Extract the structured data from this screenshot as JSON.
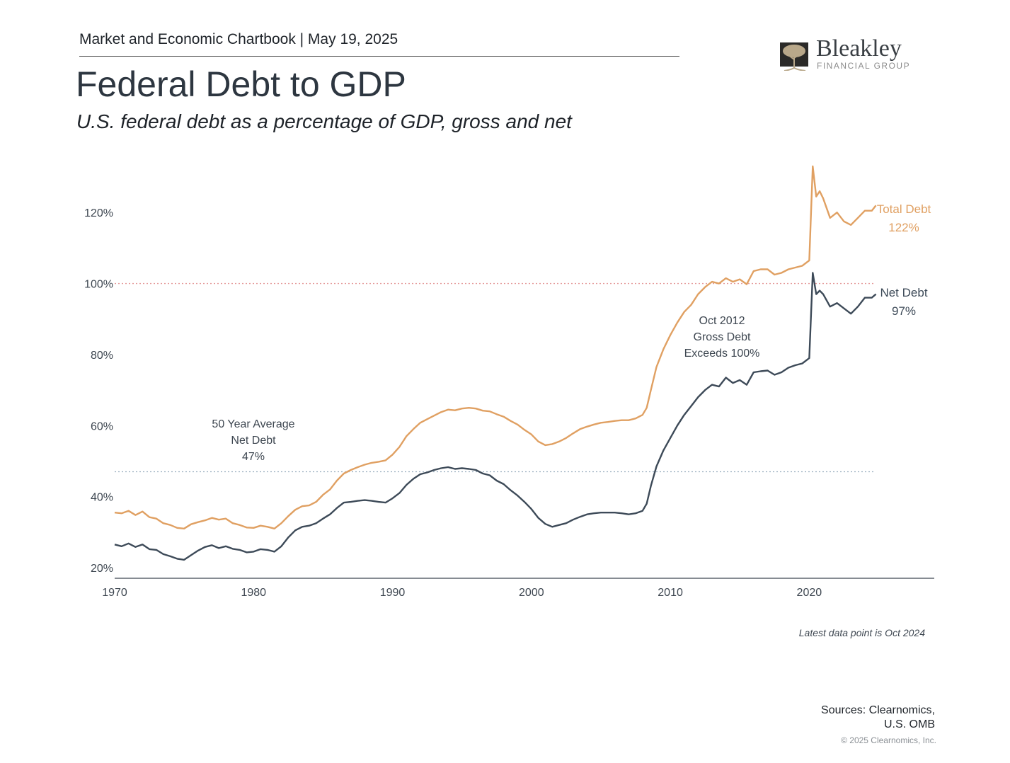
{
  "header": {
    "chartbook": "Market and Economic Chartbook | May 19, 2025",
    "title": "Federal Debt to GDP",
    "subtitle": "U.S. federal debt as a percentage of GDP, gross and net"
  },
  "logo": {
    "name": "Bleakley",
    "tagline": "FINANCIAL GROUP",
    "colors": {
      "mark": "#2b2a28",
      "tree": "#b9a88a",
      "name": "#3a3f44"
    }
  },
  "footer": {
    "note": "Latest data point is Oct 2024",
    "sources_line1": "Sources: Clearnomics,",
    "sources_line2": "U.S. OMB",
    "copyright": "© 2025 Clearnomics, Inc."
  },
  "chart_data": {
    "type": "line",
    "x_unit": "year",
    "xlim": [
      1970,
      2029
    ],
    "ylim": [
      17,
      134
    ],
    "x_ticks": [
      {
        "value": 1970,
        "label": "1970"
      },
      {
        "value": 1980,
        "label": "1980"
      },
      {
        "value": 1990,
        "label": "1990"
      },
      {
        "value": 2000,
        "label": "2000"
      },
      {
        "value": 2010,
        "label": "2010"
      },
      {
        "value": 2020,
        "label": "2020"
      }
    ],
    "y_ticks": [
      {
        "value": 20,
        "label": "20%"
      },
      {
        "value": 40,
        "label": "40%"
      },
      {
        "value": 60,
        "label": "60%"
      },
      {
        "value": 80,
        "label": "80%"
      },
      {
        "value": 100,
        "label": "100%"
      },
      {
        "value": 120,
        "label": "120%"
      }
    ],
    "grid": false,
    "reference_lines": [
      {
        "value": 100,
        "color": "#e59b9b"
      },
      {
        "value": 47,
        "color": "#9aaebf"
      }
    ],
    "series": [
      {
        "name": "Total Debt",
        "end_label": "122%",
        "color": "#e0a062",
        "points": [
          [
            1970,
            35.5
          ],
          [
            1970.5,
            35.3
          ],
          [
            1971,
            36.0
          ],
          [
            1971.5,
            34.8
          ],
          [
            1972,
            35.8
          ],
          [
            1972.5,
            34.2
          ],
          [
            1973,
            33.8
          ],
          [
            1973.5,
            32.5
          ],
          [
            1974,
            32.0
          ],
          [
            1974.5,
            31.2
          ],
          [
            1975,
            31.0
          ],
          [
            1975.5,
            32.2
          ],
          [
            1976,
            32.8
          ],
          [
            1976.5,
            33.3
          ],
          [
            1977,
            34.0
          ],
          [
            1977.5,
            33.5
          ],
          [
            1978,
            33.8
          ],
          [
            1978.5,
            32.5
          ],
          [
            1979,
            32.0
          ],
          [
            1979.5,
            31.3
          ],
          [
            1980,
            31.2
          ],
          [
            1980.5,
            31.8
          ],
          [
            1981,
            31.5
          ],
          [
            1981.5,
            31.0
          ],
          [
            1982,
            32.5
          ],
          [
            1982.5,
            34.5
          ],
          [
            1983,
            36.3
          ],
          [
            1983.5,
            37.3
          ],
          [
            1984,
            37.5
          ],
          [
            1984.5,
            38.5
          ],
          [
            1985,
            40.5
          ],
          [
            1985.5,
            42.0
          ],
          [
            1986,
            44.5
          ],
          [
            1986.5,
            46.5
          ],
          [
            1987,
            47.5
          ],
          [
            1987.5,
            48.3
          ],
          [
            1988,
            49.0
          ],
          [
            1988.5,
            49.5
          ],
          [
            1989,
            49.8
          ],
          [
            1989.5,
            50.2
          ],
          [
            1990,
            51.8
          ],
          [
            1990.5,
            54.0
          ],
          [
            1991,
            57.0
          ],
          [
            1991.5,
            59.0
          ],
          [
            1992,
            60.8
          ],
          [
            1992.5,
            61.8
          ],
          [
            1993,
            62.8
          ],
          [
            1993.5,
            63.8
          ],
          [
            1994,
            64.5
          ],
          [
            1994.5,
            64.3
          ],
          [
            1995,
            64.8
          ],
          [
            1995.5,
            65.0
          ],
          [
            1996,
            64.8
          ],
          [
            1996.5,
            64.2
          ],
          [
            1997,
            64.0
          ],
          [
            1997.5,
            63.2
          ],
          [
            1998,
            62.5
          ],
          [
            1998.5,
            61.3
          ],
          [
            1999,
            60.3
          ],
          [
            1999.5,
            58.8
          ],
          [
            2000,
            57.5
          ],
          [
            2000.5,
            55.5
          ],
          [
            2001,
            54.5
          ],
          [
            2001.5,
            54.8
          ],
          [
            2002,
            55.5
          ],
          [
            2002.5,
            56.5
          ],
          [
            2003,
            57.8
          ],
          [
            2003.5,
            59.0
          ],
          [
            2004,
            59.7
          ],
          [
            2004.5,
            60.3
          ],
          [
            2005,
            60.8
          ],
          [
            2005.5,
            61.0
          ],
          [
            2006,
            61.3
          ],
          [
            2006.5,
            61.5
          ],
          [
            2007,
            61.5
          ],
          [
            2007.5,
            62.0
          ],
          [
            2008,
            63.0
          ],
          [
            2008.3,
            65.0
          ],
          [
            2008.6,
            70.0
          ],
          [
            2009,
            76.5
          ],
          [
            2009.5,
            81.5
          ],
          [
            2010,
            85.5
          ],
          [
            2010.5,
            89.0
          ],
          [
            2011,
            92.0
          ],
          [
            2011.5,
            94.0
          ],
          [
            2012,
            97.0
          ],
          [
            2012.5,
            99.0
          ],
          [
            2013,
            100.5
          ],
          [
            2013.5,
            100.0
          ],
          [
            2014,
            101.5
          ],
          [
            2014.5,
            100.5
          ],
          [
            2015,
            101.2
          ],
          [
            2015.5,
            99.8
          ],
          [
            2016,
            103.5
          ],
          [
            2016.5,
            104.0
          ],
          [
            2017,
            104.0
          ],
          [
            2017.5,
            102.5
          ],
          [
            2018,
            103.0
          ],
          [
            2018.5,
            104.0
          ],
          [
            2019,
            104.5
          ],
          [
            2019.5,
            105.0
          ],
          [
            2020,
            106.5
          ],
          [
            2020.25,
            133.0
          ],
          [
            2020.5,
            124.5
          ],
          [
            2020.75,
            126.0
          ],
          [
            2021,
            124.0
          ],
          [
            2021.5,
            118.5
          ],
          [
            2022,
            120.0
          ],
          [
            2022.5,
            117.5
          ],
          [
            2023,
            116.5
          ],
          [
            2023.5,
            118.5
          ],
          [
            2024,
            120.5
          ],
          [
            2024.5,
            120.5
          ],
          [
            2024.8,
            122.0
          ]
        ]
      },
      {
        "name": "Net Debt",
        "end_label": "97%",
        "color": "#3d4a58",
        "points": [
          [
            1970,
            26.5
          ],
          [
            1970.5,
            26.0
          ],
          [
            1971,
            26.8
          ],
          [
            1971.5,
            25.8
          ],
          [
            1972,
            26.5
          ],
          [
            1972.5,
            25.2
          ],
          [
            1973,
            25.0
          ],
          [
            1973.5,
            23.8
          ],
          [
            1974,
            23.2
          ],
          [
            1974.5,
            22.5
          ],
          [
            1975,
            22.2
          ],
          [
            1975.5,
            23.5
          ],
          [
            1976,
            24.8
          ],
          [
            1976.5,
            25.8
          ],
          [
            1977,
            26.3
          ],
          [
            1977.5,
            25.5
          ],
          [
            1978,
            26.0
          ],
          [
            1978.5,
            25.3
          ],
          [
            1979,
            25.0
          ],
          [
            1979.5,
            24.3
          ],
          [
            1980,
            24.5
          ],
          [
            1980.5,
            25.2
          ],
          [
            1981,
            25.0
          ],
          [
            1981.5,
            24.5
          ],
          [
            1982,
            26.0
          ],
          [
            1982.5,
            28.5
          ],
          [
            1983,
            30.5
          ],
          [
            1983.5,
            31.5
          ],
          [
            1984,
            31.8
          ],
          [
            1984.5,
            32.5
          ],
          [
            1985,
            33.8
          ],
          [
            1985.5,
            35.0
          ],
          [
            1986,
            36.8
          ],
          [
            1986.5,
            38.3
          ],
          [
            1987,
            38.5
          ],
          [
            1987.5,
            38.8
          ],
          [
            1988,
            39.0
          ],
          [
            1988.5,
            38.8
          ],
          [
            1989,
            38.5
          ],
          [
            1989.5,
            38.3
          ],
          [
            1990,
            39.5
          ],
          [
            1990.5,
            41.0
          ],
          [
            1991,
            43.3
          ],
          [
            1991.5,
            45.0
          ],
          [
            1992,
            46.3
          ],
          [
            1992.5,
            46.8
          ],
          [
            1993,
            47.5
          ],
          [
            1993.5,
            48.0
          ],
          [
            1994,
            48.3
          ],
          [
            1994.5,
            47.8
          ],
          [
            1995,
            48.0
          ],
          [
            1995.5,
            47.8
          ],
          [
            1996,
            47.5
          ],
          [
            1996.5,
            46.5
          ],
          [
            1997,
            46.0
          ],
          [
            1997.5,
            44.5
          ],
          [
            1998,
            43.5
          ],
          [
            1998.5,
            41.8
          ],
          [
            1999,
            40.3
          ],
          [
            1999.5,
            38.5
          ],
          [
            2000,
            36.5
          ],
          [
            2000.5,
            34.0
          ],
          [
            2001,
            32.3
          ],
          [
            2001.5,
            31.5
          ],
          [
            2002,
            32.0
          ],
          [
            2002.5,
            32.5
          ],
          [
            2003,
            33.5
          ],
          [
            2003.5,
            34.3
          ],
          [
            2004,
            35.0
          ],
          [
            2004.5,
            35.3
          ],
          [
            2005,
            35.5
          ],
          [
            2005.5,
            35.5
          ],
          [
            2006,
            35.5
          ],
          [
            2006.5,
            35.3
          ],
          [
            2007,
            35.0
          ],
          [
            2007.5,
            35.3
          ],
          [
            2008,
            36.0
          ],
          [
            2008.3,
            38.0
          ],
          [
            2008.6,
            43.0
          ],
          [
            2009,
            48.5
          ],
          [
            2009.5,
            53.0
          ],
          [
            2010,
            56.5
          ],
          [
            2010.5,
            60.0
          ],
          [
            2011,
            63.0
          ],
          [
            2011.5,
            65.5
          ],
          [
            2012,
            68.0
          ],
          [
            2012.5,
            70.0
          ],
          [
            2013,
            71.5
          ],
          [
            2013.5,
            71.0
          ],
          [
            2014,
            73.5
          ],
          [
            2014.5,
            72.0
          ],
          [
            2015,
            72.8
          ],
          [
            2015.5,
            71.5
          ],
          [
            2016,
            75.0
          ],
          [
            2016.5,
            75.3
          ],
          [
            2017,
            75.5
          ],
          [
            2017.5,
            74.3
          ],
          [
            2018,
            75.0
          ],
          [
            2018.5,
            76.3
          ],
          [
            2019,
            77.0
          ],
          [
            2019.5,
            77.5
          ],
          [
            2020,
            79.0
          ],
          [
            2020.25,
            103.0
          ],
          [
            2020.5,
            97.0
          ],
          [
            2020.75,
            98.0
          ],
          [
            2021,
            97.0
          ],
          [
            2021.5,
            93.5
          ],
          [
            2022,
            94.5
          ],
          [
            2022.5,
            93.0
          ],
          [
            2023,
            91.5
          ],
          [
            2023.5,
            93.5
          ],
          [
            2024,
            96.0
          ],
          [
            2024.5,
            96.0
          ],
          [
            2024.8,
            97.0
          ]
        ]
      }
    ],
    "annotations": [
      {
        "key": "avg",
        "lines": [
          "50 Year Average",
          "Net Debt",
          "47%"
        ]
      },
      {
        "key": "oct2012",
        "lines": [
          "Oct 2012",
          "Gross Debt",
          "Exceeds 100%"
        ]
      }
    ]
  }
}
